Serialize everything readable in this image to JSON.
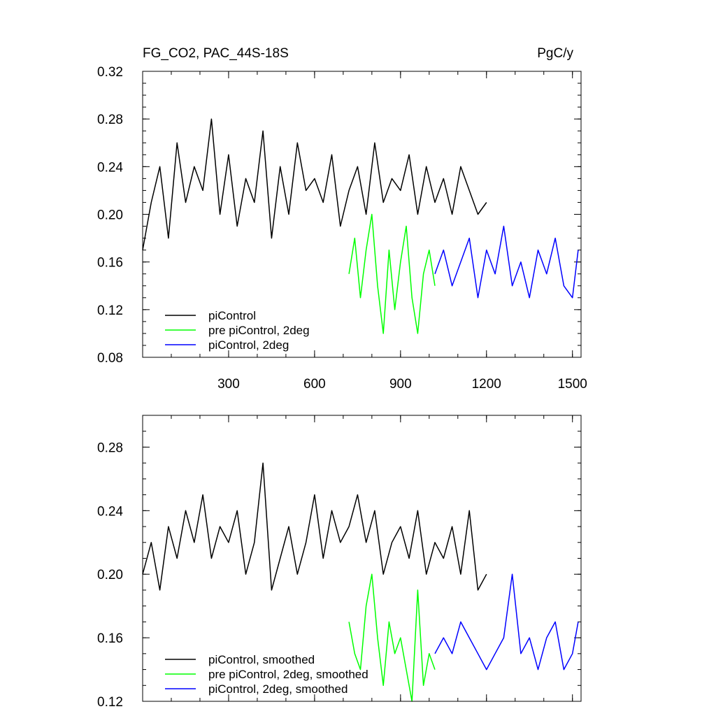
{
  "chart_data": [
    {
      "type": "line",
      "title": "FG_CO2, PAC_44S-18S",
      "units": "PgC/y",
      "xlim": [
        0,
        1530
      ],
      "ylim": [
        0.08,
        0.32
      ],
      "xticks": [
        300,
        600,
        900,
        1200,
        1500
      ],
      "yticks": [
        0.08,
        0.12,
        0.16,
        0.2,
        0.24,
        0.28,
        0.32
      ],
      "xtick_labels": [
        "300",
        "600",
        "900",
        "1200",
        "1500"
      ],
      "ytick_labels": [
        "0.08",
        "0.12",
        "0.16",
        "0.20",
        "0.24",
        "0.28",
        "0.32"
      ],
      "legend_position": "bottom-left",
      "series": [
        {
          "name": "piControl",
          "color": "#000000",
          "x": [
            0,
            30,
            60,
            90,
            120,
            150,
            180,
            210,
            240,
            270,
            300,
            330,
            360,
            390,
            420,
            450,
            480,
            510,
            540,
            570,
            600,
            630,
            660,
            690,
            720,
            750,
            780,
            810,
            840,
            870,
            900,
            930,
            960,
            990,
            1020,
            1050,
            1080,
            1110,
            1140,
            1170,
            1200
          ],
          "y": [
            0.17,
            0.21,
            0.24,
            0.18,
            0.26,
            0.21,
            0.24,
            0.22,
            0.28,
            0.2,
            0.25,
            0.19,
            0.23,
            0.21,
            0.27,
            0.18,
            0.24,
            0.2,
            0.26,
            0.22,
            0.23,
            0.21,
            0.25,
            0.19,
            0.22,
            0.24,
            0.2,
            0.26,
            0.21,
            0.23,
            0.22,
            0.25,
            0.2,
            0.24,
            0.21,
            0.23,
            0.2,
            0.24,
            0.22,
            0.2,
            0.21
          ]
        },
        {
          "name": "pre piControl, 2deg",
          "color": "#00ff00",
          "x": [
            720,
            740,
            760,
            780,
            800,
            820,
            840,
            860,
            880,
            900,
            920,
            940,
            960,
            980,
            1000,
            1020
          ],
          "y": [
            0.15,
            0.18,
            0.13,
            0.17,
            0.2,
            0.14,
            0.1,
            0.17,
            0.12,
            0.16,
            0.19,
            0.13,
            0.1,
            0.15,
            0.17,
            0.14
          ]
        },
        {
          "name": "piControl, 2deg",
          "color": "#0000ff",
          "x": [
            1020,
            1050,
            1080,
            1110,
            1140,
            1170,
            1200,
            1230,
            1260,
            1290,
            1320,
            1350,
            1380,
            1410,
            1440,
            1470,
            1500,
            1520
          ],
          "y": [
            0.15,
            0.17,
            0.14,
            0.16,
            0.18,
            0.13,
            0.17,
            0.15,
            0.19,
            0.14,
            0.16,
            0.13,
            0.17,
            0.15,
            0.18,
            0.14,
            0.13,
            0.17
          ]
        }
      ]
    },
    {
      "type": "line",
      "xlim": [
        0,
        1530
      ],
      "ylim": [
        0.12,
        0.3
      ],
      "xticks": [
        300,
        600,
        900,
        1200,
        1500
      ],
      "yticks": [
        0.12,
        0.16,
        0.2,
        0.24,
        0.28
      ],
      "ytick_labels": [
        "0.12",
        "0.16",
        "0.20",
        "0.24",
        "0.28"
      ],
      "legend_position": "bottom-left",
      "series": [
        {
          "name": "piControl, smoothed",
          "color": "#000000",
          "x": [
            0,
            30,
            60,
            90,
            120,
            150,
            180,
            210,
            240,
            270,
            300,
            330,
            360,
            390,
            420,
            450,
            480,
            510,
            540,
            570,
            600,
            630,
            660,
            690,
            720,
            750,
            780,
            810,
            840,
            870,
            900,
            930,
            960,
            990,
            1020,
            1050,
            1080,
            1110,
            1140,
            1170,
            1200
          ],
          "y": [
            0.2,
            0.22,
            0.19,
            0.23,
            0.21,
            0.24,
            0.22,
            0.25,
            0.21,
            0.23,
            0.22,
            0.24,
            0.2,
            0.22,
            0.27,
            0.19,
            0.21,
            0.23,
            0.2,
            0.22,
            0.25,
            0.21,
            0.24,
            0.22,
            0.23,
            0.25,
            0.22,
            0.24,
            0.2,
            0.22,
            0.23,
            0.21,
            0.24,
            0.2,
            0.22,
            0.21,
            0.23,
            0.2,
            0.24,
            0.19,
            0.2
          ]
        },
        {
          "name": "pre piControl, 2deg, smoothed",
          "color": "#00ff00",
          "x": [
            720,
            740,
            760,
            780,
            800,
            820,
            840,
            860,
            880,
            900,
            920,
            940,
            960,
            980,
            1000,
            1020
          ],
          "y": [
            0.17,
            0.15,
            0.14,
            0.18,
            0.2,
            0.16,
            0.13,
            0.17,
            0.15,
            0.16,
            0.14,
            0.12,
            0.19,
            0.13,
            0.15,
            0.14
          ]
        },
        {
          "name": "piControl, 2deg, smoothed",
          "color": "#0000ff",
          "x": [
            1020,
            1050,
            1080,
            1110,
            1140,
            1170,
            1200,
            1230,
            1260,
            1290,
            1320,
            1350,
            1380,
            1410,
            1440,
            1470,
            1500,
            1520
          ],
          "y": [
            0.15,
            0.16,
            0.15,
            0.17,
            0.16,
            0.15,
            0.14,
            0.15,
            0.16,
            0.2,
            0.15,
            0.16,
            0.14,
            0.16,
            0.17,
            0.14,
            0.15,
            0.17
          ]
        }
      ]
    }
  ]
}
